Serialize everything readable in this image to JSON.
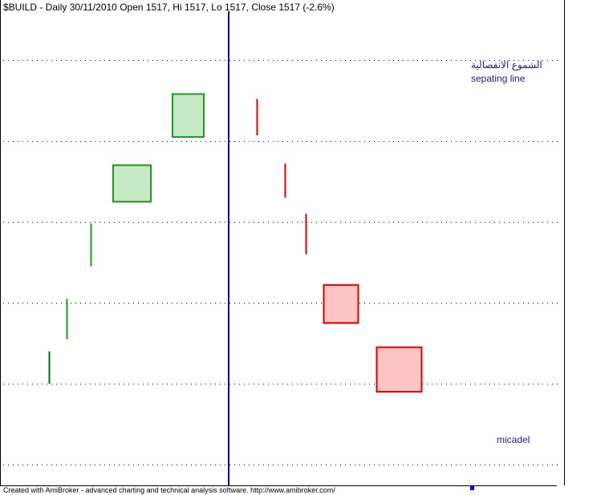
{
  "header": {
    "title": "$BUILD - Daily 30/11/2010 Open 1517, Hi 1517, Lo 1517, Close 1517 (-2.6%)"
  },
  "footer": {
    "credit": "Created with AmiBroker - advanced charting and technical analysis software. http://www.amibroker.com/"
  },
  "annotations": {
    "arabic_note": "الشموع الانفصالية",
    "separating_line": "sepating line",
    "author": "micadel"
  },
  "colors": {
    "bull_outline": "#1f9a1f",
    "bull_fill": "#c6e9c6",
    "bear_outline": "#e00000",
    "bear_fill": "#ffc4c4",
    "separator": "#00008b",
    "annotation_text": "#1a1aa8",
    "grid": "#000000",
    "marker": "#0000ff"
  },
  "chart_data": {
    "type": "candlestick",
    "grid": "horizontal dotted",
    "ylim": [
      0,
      6
    ],
    "separator_after_bar": 6,
    "bars": [
      {
        "open": 2.0,
        "close": 2.4,
        "color": "green-dark"
      },
      {
        "open": 2.55,
        "close": 3.05,
        "color": "green"
      },
      {
        "open": 3.45,
        "close": 3.98,
        "color": "green"
      },
      {
        "open": 4.25,
        "close": 4.7,
        "color": "green"
      },
      {
        "open": 5.05,
        "close": 5.58,
        "color": "green"
      },
      {
        "open": 5.07,
        "close": 5.52,
        "color": "red"
      },
      {
        "open": 4.3,
        "close": 4.72,
        "color": "red"
      },
      {
        "open": 3.6,
        "close": 4.1,
        "color": "red"
      },
      {
        "open": 2.75,
        "close": 3.22,
        "color": "red"
      },
      {
        "open": 1.9,
        "close": 2.45,
        "color": "red"
      }
    ]
  }
}
